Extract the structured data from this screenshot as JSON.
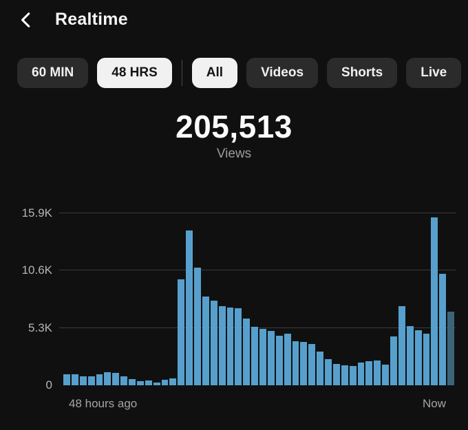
{
  "header": {
    "title": "Realtime"
  },
  "filters": {
    "time_range": [
      {
        "label": "60 MIN",
        "selected": false
      },
      {
        "label": "48 HRS",
        "selected": true
      }
    ],
    "content_type": [
      {
        "label": "All",
        "selected": true
      },
      {
        "label": "Videos",
        "selected": false
      },
      {
        "label": "Shorts",
        "selected": false
      },
      {
        "label": "Live",
        "selected": false
      }
    ]
  },
  "summary": {
    "value": "205,513",
    "label": "Views"
  },
  "chart_data": {
    "type": "bar",
    "ylabel": "Views",
    "ylim": [
      0,
      15900
    ],
    "grid": "horizontal",
    "y_ticks": [
      {
        "label": "15.9K",
        "value": 15900
      },
      {
        "label": "10.6K",
        "value": 10600
      },
      {
        "label": "5.3K",
        "value": 5300
      },
      {
        "label": "0",
        "value": 0
      }
    ],
    "x_axis": {
      "left_label": "48 hours ago",
      "right_label": "Now"
    },
    "values": [
      1000,
      1050,
      800,
      850,
      1000,
      1200,
      1150,
      800,
      550,
      400,
      430,
      280,
      500,
      620,
      9800,
      14300,
      10900,
      8200,
      7800,
      7300,
      7200,
      7100,
      6200,
      5400,
      5200,
      5000,
      4600,
      4800,
      4100,
      4000,
      3800,
      3100,
      2400,
      2000,
      1850,
      1800,
      2100,
      2200,
      2300,
      1900,
      4500,
      7300,
      5500,
      5100,
      4800,
      15500,
      10300,
      6800
    ],
    "current_bar_index": 47,
    "colors": {
      "bar": "#57a0cd",
      "current_bar": "#3c6478",
      "gridline": "#3b3b3b"
    }
  },
  "colors": {
    "background": "#101010",
    "chip": "#2b2b2b",
    "chip_selected_bg": "#f1f1f1",
    "chip_selected_text": "#141414",
    "text_primary": "#f5f5f5",
    "text_secondary": "#9b9b9b"
  }
}
